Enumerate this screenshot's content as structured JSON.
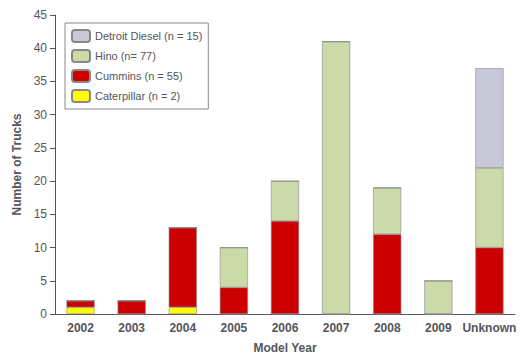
{
  "chart_data": {
    "type": "bar",
    "categories": [
      "2002",
      "2003",
      "2004",
      "2005",
      "2006",
      "2007",
      "2008",
      "2009",
      "Unknown"
    ],
    "series": [
      {
        "name": "Caterpillar (n = 2)",
        "color": "#ffff00",
        "values": [
          1,
          0,
          1,
          0,
          0,
          0,
          0,
          0,
          0
        ]
      },
      {
        "name": "Cummins (n = 55)",
        "color": "#cc0000",
        "values": [
          1,
          2,
          12,
          4,
          14,
          0,
          12,
          0,
          10
        ]
      },
      {
        "name": "Hino (n= 77)",
        "color": "#ccdaaa",
        "values": [
          0,
          0,
          0,
          6,
          6,
          41,
          7,
          5,
          12
        ]
      },
      {
        "name": "Detroit Diesel (n = 15)",
        "color": "#c8c8d8",
        "values": [
          0,
          0,
          0,
          0,
          0,
          0,
          0,
          0,
          15
        ]
      }
    ],
    "xlabel": "Model Year",
    "ylabel": "Number of Trucks",
    "ylim": [
      0,
      45
    ],
    "yticks": [
      0,
      5,
      10,
      15,
      20,
      25,
      30,
      35,
      40,
      45
    ],
    "stacked": true,
    "legend": "upper left",
    "grid": false
  }
}
